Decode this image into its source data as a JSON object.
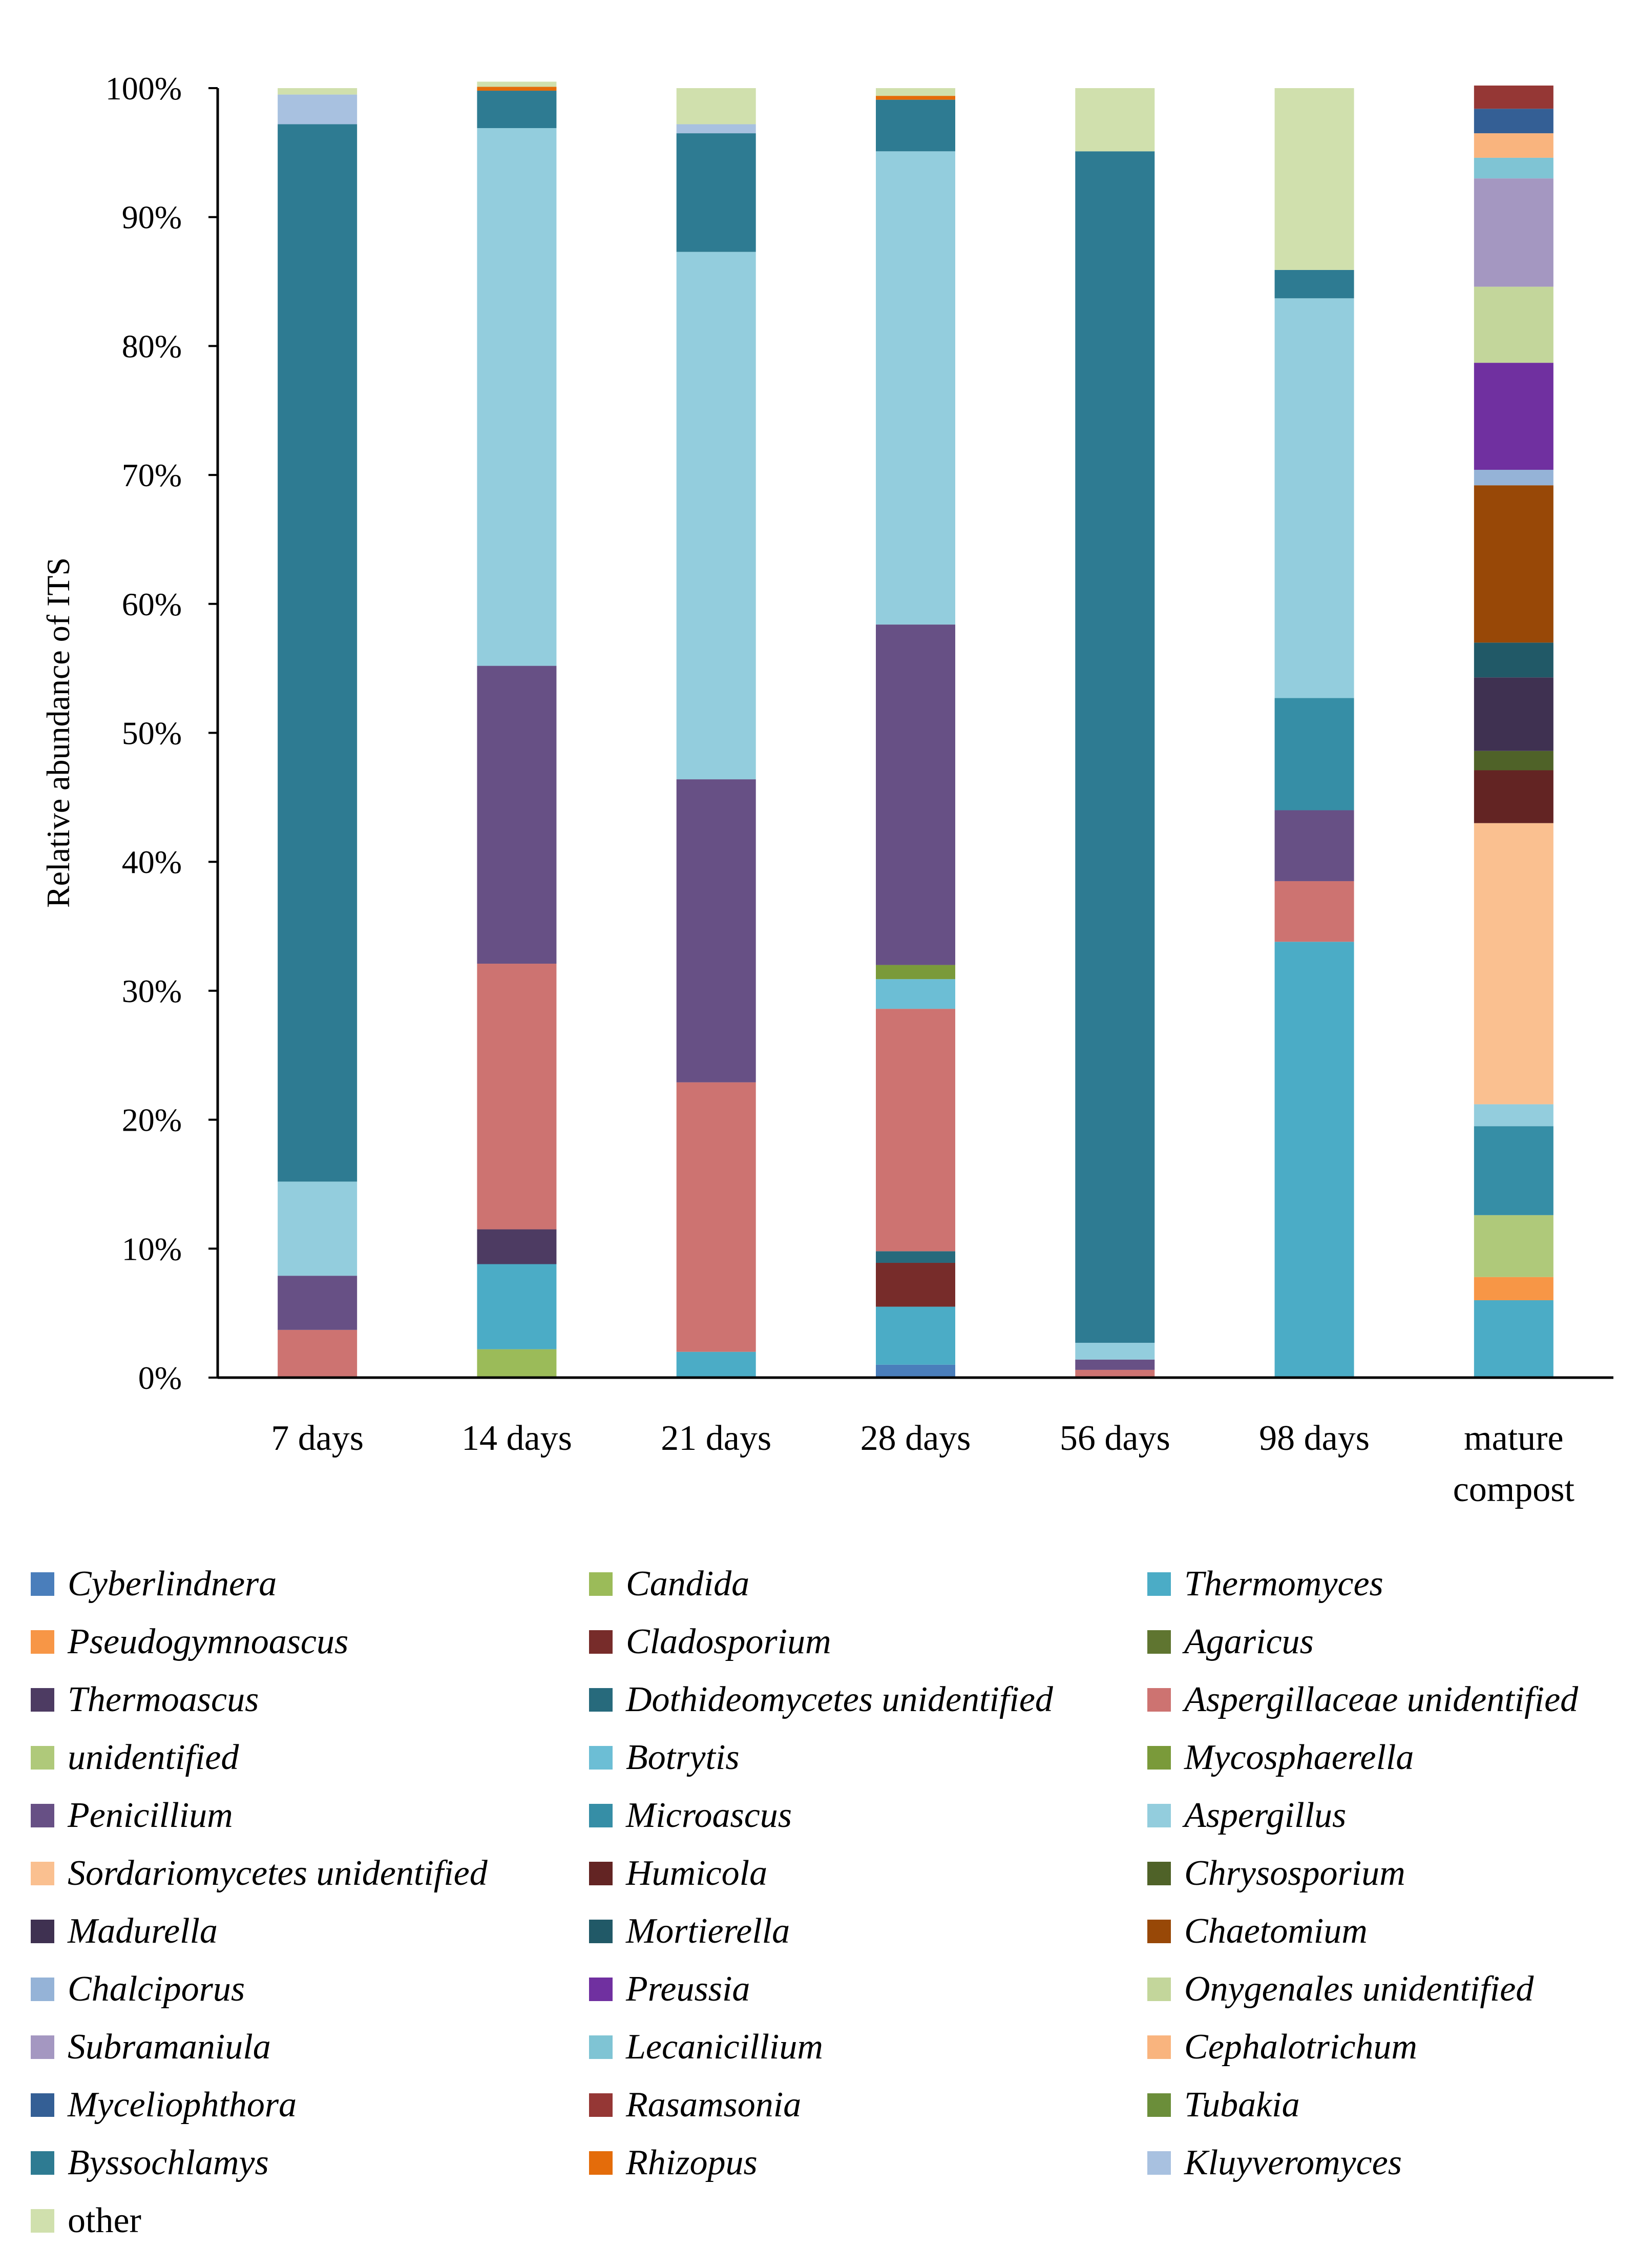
{
  "chart_data": {
    "type": "bar",
    "stacked": true,
    "normalized": true,
    "title": "",
    "xlabel": "",
    "ylabel": "Relative abundance of ITS",
    "ylim": [
      0,
      100
    ],
    "ytick_labels": [
      "0%",
      "10%",
      "20%",
      "30%",
      "40%",
      "50%",
      "60%",
      "70%",
      "80%",
      "90%",
      "100%"
    ],
    "categories": [
      "7 days",
      "14 days",
      "21 days",
      "28 days",
      "56 days",
      "98 days",
      "mature compost"
    ],
    "category_lines": [
      [
        "7 days"
      ],
      [
        "14 days"
      ],
      [
        "21 days"
      ],
      [
        "28 days"
      ],
      [
        "56 days"
      ],
      [
        "98 days"
      ],
      [
        "mature",
        "compost"
      ]
    ],
    "legend_position": "bottom",
    "series": [
      {
        "name": "Cyberlindnera",
        "color": "#4a7ebb",
        "values": [
          0,
          0,
          0,
          1.0,
          0,
          0,
          0
        ]
      },
      {
        "name": "Candida",
        "color": "#9bbb59",
        "values": [
          0,
          2.2,
          0,
          0,
          0,
          0,
          0
        ]
      },
      {
        "name": "Thermomyces",
        "color": "#4bacc6",
        "values": [
          0,
          6.6,
          2.0,
          4.5,
          0,
          33.8,
          6.0
        ]
      },
      {
        "name": "Pseudogymnoascus",
        "color": "#f79646",
        "values": [
          0,
          0,
          0,
          0,
          0,
          0,
          1.8
        ]
      },
      {
        "name": "Cladosporium",
        "color": "#772c2a",
        "values": [
          0,
          0,
          0,
          3.4,
          0,
          0,
          0
        ]
      },
      {
        "name": "Agaricus",
        "color": "#5f7530",
        "values": [
          0,
          0,
          0,
          0,
          0,
          0,
          0
        ]
      },
      {
        "name": "Thermoascus",
        "color": "#4d3b62",
        "values": [
          0,
          2.7,
          0,
          0,
          0,
          0,
          0
        ]
      },
      {
        "name": "Dothideomycetes unidentified",
        "color": "#276a7c",
        "values": [
          0,
          0,
          0,
          0.9,
          0,
          0,
          0
        ]
      },
      {
        "name": "Aspergillaceae unidentified",
        "color": "#cd7371",
        "values": [
          3.7,
          20.6,
          20.9,
          18.8,
          0.6,
          4.7,
          0
        ]
      },
      {
        "name": "unidentified",
        "color": "#afc97a",
        "values": [
          0,
          0,
          0,
          0,
          0,
          0,
          4.8
        ]
      },
      {
        "name": "Botrytis",
        "color": "#6cbed5",
        "values": [
          0,
          0,
          0,
          2.3,
          0,
          0,
          0
        ]
      },
      {
        "name": "Mycosphaerella",
        "color": "#7a9a3a",
        "values": [
          0,
          0,
          0,
          1.1,
          0,
          0,
          0
        ]
      },
      {
        "name": "Penicillium",
        "color": "#675085",
        "values": [
          4.2,
          23.1,
          23.5,
          26.4,
          0.8,
          5.5,
          0
        ]
      },
      {
        "name": "Microascus",
        "color": "#368ea6",
        "values": [
          0,
          0,
          0,
          0,
          0,
          8.7,
          6.9
        ]
      },
      {
        "name": "Aspergillus",
        "color": "#93cddd",
        "values": [
          7.3,
          41.7,
          40.9,
          36.7,
          1.3,
          31.0,
          1.7
        ]
      },
      {
        "name": "Sordariomycetes unidentified",
        "color": "#fac090",
        "values": [
          0,
          0,
          0,
          0,
          0,
          0,
          21.8
        ]
      },
      {
        "name": "Humicola",
        "color": "#632423",
        "values": [
          0,
          0,
          0,
          0,
          0,
          0,
          4.1
        ]
      },
      {
        "name": "Chrysosporium",
        "color": "#4f6228",
        "values": [
          0,
          0,
          0,
          0,
          0,
          0,
          1.5
        ]
      },
      {
        "name": "Madurella",
        "color": "#3f3151",
        "values": [
          0,
          0,
          0,
          0,
          0,
          0,
          5.7
        ]
      },
      {
        "name": "Mortierella",
        "color": "#215967",
        "values": [
          0,
          0,
          0,
          0,
          0,
          0,
          2.7
        ]
      },
      {
        "name": "Chaetomium",
        "color": "#984807",
        "values": [
          0,
          0,
          0,
          0,
          0,
          0,
          12.2
        ]
      },
      {
        "name": "Chalciporus",
        "color": "#95b3d7",
        "values": [
          0,
          0,
          0,
          0,
          0,
          0,
          1.2
        ]
      },
      {
        "name": "Preussia",
        "color": "#7030a0",
        "values": [
          0,
          0,
          0,
          0,
          0,
          0,
          8.3
        ]
      },
      {
        "name": "Onygenales unidentified",
        "color": "#c3d69b",
        "values": [
          0,
          0,
          0,
          0,
          0,
          0,
          5.9
        ]
      },
      {
        "name": "Subramaniula",
        "color": "#a497c1",
        "values": [
          0,
          0,
          0,
          0,
          0,
          0,
          8.4
        ]
      },
      {
        "name": "Lecanicillium",
        "color": "#7fc4d4",
        "values": [
          0,
          0,
          0,
          0,
          0,
          0,
          1.6
        ]
      },
      {
        "name": "Cephalotrichum",
        "color": "#f9b47e",
        "values": [
          0,
          0,
          0,
          0,
          0,
          0,
          1.9
        ]
      },
      {
        "name": "Myceliophthora",
        "color": "#345f95",
        "values": [
          0,
          0,
          0,
          0,
          0,
          0,
          1.9
        ]
      },
      {
        "name": "Rasamsonia",
        "color": "#953735",
        "values": [
          0,
          0,
          0,
          0,
          0,
          0,
          1.8
        ]
      },
      {
        "name": "Tubakia",
        "color": "#6b8e3a",
        "values": [
          0,
          0,
          0,
          0,
          0,
          0,
          0
        ]
      },
      {
        "name": "Byssochlamys",
        "color": "#2e7b92",
        "values": [
          82.0,
          2.9,
          9.2,
          4.0,
          92.4,
          2.2,
          0
        ]
      },
      {
        "name": "Rhizopus",
        "color": "#e46c0a",
        "values": [
          0,
          0.3,
          0,
          0.3,
          0,
          0,
          0
        ]
      },
      {
        "name": "Kluyveromyces",
        "color": "#a8c1e0",
        "values": [
          2.3,
          0,
          0.7,
          0,
          0,
          0,
          0
        ]
      },
      {
        "name": "other",
        "color": "#d0e0ad",
        "values": [
          0.5,
          0.4,
          2.8,
          0.6,
          4.9,
          14.1,
          0
        ]
      }
    ]
  }
}
